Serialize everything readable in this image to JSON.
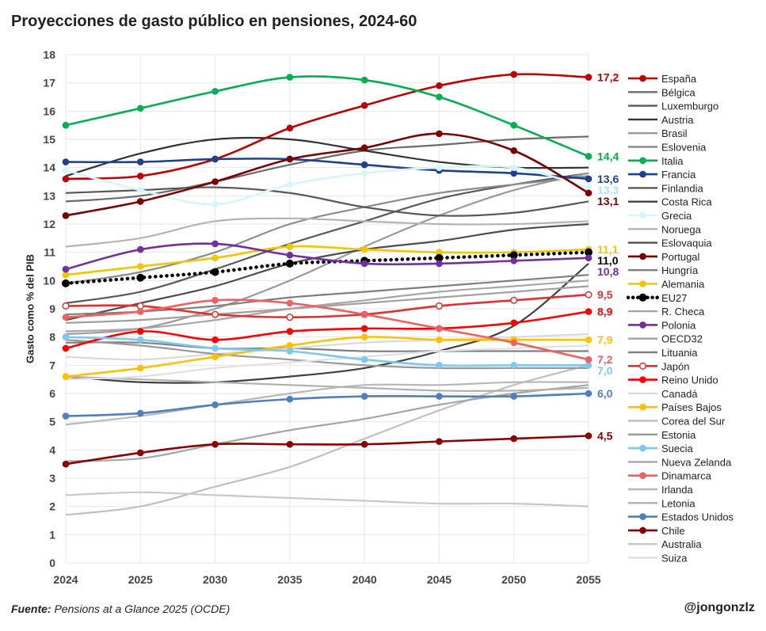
{
  "title": "Proyecciones de gasto público en pensiones, 2024-60",
  "source_label": "Fuente:",
  "source_text": "Pensions at a Glance 2025 (OCDE)",
  "handle": "@jongonzlz",
  "chart_data": {
    "type": "line",
    "title": "Proyecciones de gasto público en pensiones, 2024-60",
    "xlabel": "",
    "ylabel": "Gasto como % del PIB",
    "x": [
      "2024",
      "2025",
      "2030",
      "2035",
      "2040",
      "2045",
      "2050",
      "2055"
    ],
    "ylim": [
      0,
      18
    ],
    "yticks": [
      0,
      1,
      2,
      3,
      4,
      5,
      6,
      7,
      8,
      9,
      10,
      11,
      12,
      13,
      14,
      15,
      16,
      17,
      18
    ],
    "grid": true,
    "legend_position": "right",
    "series": [
      {
        "name": "España",
        "color": "#c00000",
        "markers": true,
        "end_label": "17,2",
        "values": [
          13.6,
          13.7,
          14.3,
          15.4,
          16.2,
          16.9,
          17.3,
          17.2
        ]
      },
      {
        "name": "Bélgica",
        "color": "#6b6b6b",
        "values": [
          12.8,
          13.0,
          13.5,
          14.1,
          14.6,
          14.8,
          15.0,
          15.1
        ]
      },
      {
        "name": "Luxemburgo",
        "color": "#595959",
        "values": [
          9.2,
          9.6,
          10.4,
          11.3,
          12.1,
          12.9,
          13.4,
          13.8
        ]
      },
      {
        "name": "Austria",
        "color": "#333333",
        "values": [
          13.7,
          14.5,
          15.0,
          15.0,
          14.6,
          14.2,
          14.0,
          14.0
        ]
      },
      {
        "name": "Brasil",
        "color": "#9a9a9a",
        "values": [
          8.1,
          8.3,
          9.0,
          10.0,
          11.2,
          12.3,
          13.2,
          13.8
        ]
      },
      {
        "name": "Eslovenia",
        "color": "#8c8c8c",
        "values": [
          9.9,
          10.3,
          11.0,
          12.0,
          12.6,
          13.1,
          13.4,
          13.7
        ]
      },
      {
        "name": "Italia",
        "color": "#00b050",
        "markers": true,
        "end_label": "14,4",
        "values": [
          15.5,
          16.1,
          16.7,
          17.2,
          17.1,
          16.5,
          15.5,
          14.4
        ]
      },
      {
        "name": "Francia",
        "color": "#1f3f8f",
        "markers": true,
        "end_label": "13,6",
        "values": [
          14.2,
          14.2,
          14.3,
          14.3,
          14.1,
          13.9,
          13.8,
          13.6
        ]
      },
      {
        "name": "Finlandia",
        "color": "#595959",
        "values": [
          13.1,
          13.2,
          13.3,
          13.1,
          12.6,
          12.3,
          12.4,
          12.8
        ]
      },
      {
        "name": "Costa Rica",
        "color": "#404040",
        "values": [
          6.6,
          6.4,
          6.4,
          6.6,
          6.9,
          7.5,
          8.4,
          10.6
        ]
      },
      {
        "name": "Grecia",
        "color": "#d6f6fb",
        "markers": true,
        "end_label": "13,3",
        "values": [
          13.9,
          13.2,
          12.7,
          13.4,
          13.8,
          14.0,
          14.0,
          13.3
        ]
      },
      {
        "name": "Noruega",
        "color": "#b3b3b3",
        "values": [
          11.2,
          11.5,
          12.1,
          12.2,
          12.1,
          12.0,
          12.0,
          12.1
        ]
      },
      {
        "name": "Eslovaquia",
        "color": "#4d4d4d",
        "values": [
          8.6,
          9.2,
          9.8,
          10.6,
          11.1,
          11.4,
          11.8,
          12.0
        ]
      },
      {
        "name": "Portugal",
        "color": "#7a0000",
        "markers": true,
        "end_label": "13,1",
        "values": [
          12.3,
          12.8,
          13.5,
          14.3,
          14.7,
          15.2,
          14.6,
          13.1
        ]
      },
      {
        "name": "Hungría",
        "color": "#7f7f7f",
        "values": [
          8.8,
          8.9,
          9.1,
          9.4,
          9.6,
          9.8,
          10.0,
          10.2
        ]
      },
      {
        "name": "Alemania",
        "color": "#f2c500",
        "markers": true,
        "end_label": "11,1",
        "values": [
          10.2,
          10.5,
          10.8,
          11.2,
          11.1,
          11.0,
          11.0,
          11.1
        ]
      },
      {
        "name": "EU27",
        "color": "#000000",
        "markers": true,
        "dotted": true,
        "end_label": "11,0",
        "values": [
          9.9,
          10.1,
          10.3,
          10.6,
          10.7,
          10.8,
          10.9,
          11.0
        ]
      },
      {
        "name": "R. Checa",
        "color": "#a6a6a6",
        "values": [
          8.2,
          8.3,
          8.6,
          9.0,
          9.3,
          9.6,
          9.8,
          10.0
        ]
      },
      {
        "name": "Polonia",
        "color": "#7030a0",
        "markers": true,
        "end_label": "10,8",
        "values": [
          10.4,
          11.1,
          11.3,
          10.9,
          10.6,
          10.6,
          10.7,
          10.8
        ]
      },
      {
        "name": "OECD32",
        "color": "#a0a0a0",
        "values": [
          8.5,
          8.6,
          8.8,
          9.0,
          9.2,
          9.4,
          9.6,
          9.8
        ]
      },
      {
        "name": "Lituania",
        "color": "#808080",
        "values": [
          7.8,
          7.8,
          7.6,
          7.6,
          7.5,
          7.5,
          7.5,
          7.5
        ]
      },
      {
        "name": "Japón",
        "color": "#e03030",
        "markers": true,
        "hollow": true,
        "end_label": "9,5",
        "values": [
          9.1,
          9.1,
          8.8,
          8.7,
          8.8,
          9.1,
          9.3,
          9.5
        ]
      },
      {
        "name": "Reino Unido",
        "color": "#ff0000",
        "markers": true,
        "end_label": "8,9",
        "values": [
          7.6,
          8.2,
          7.9,
          8.2,
          8.3,
          8.3,
          8.5,
          8.9
        ]
      },
      {
        "name": "Canadá",
        "color": "#d9d9d9",
        "values": [
          7.3,
          7.2,
          7.4,
          7.6,
          7.8,
          7.9,
          8.0,
          8.1
        ]
      },
      {
        "name": "Países Bajos",
        "color": "#ffc000",
        "markers": true,
        "end_label": "7,9",
        "values": [
          6.6,
          6.9,
          7.3,
          7.7,
          8.0,
          7.9,
          7.9,
          7.9
        ]
      },
      {
        "name": "Corea del Sur",
        "color": "#bfbfbf",
        "values": [
          1.7,
          2.0,
          2.7,
          3.4,
          4.4,
          5.4,
          6.3,
          7.0
        ]
      },
      {
        "name": "Estonia",
        "color": "#999999",
        "values": [
          7.9,
          7.7,
          7.4,
          7.2,
          7.0,
          6.9,
          6.9,
          6.9
        ]
      },
      {
        "name": "Suecia",
        "color": "#7cc8f0",
        "markers": true,
        "end_label": "7,0",
        "values": [
          8.0,
          7.9,
          7.6,
          7.5,
          7.2,
          7.0,
          7.0,
          7.0
        ]
      },
      {
        "name": "Nueva Zelanda",
        "color": "#a6a6a6",
        "values": [
          3.6,
          3.7,
          4.2,
          4.7,
          5.1,
          5.6,
          6.0,
          6.3
        ]
      },
      {
        "name": "Dinamarca",
        "color": "#f06060",
        "markers": true,
        "end_label": "7,2",
        "values": [
          8.7,
          8.9,
          9.3,
          9.2,
          8.8,
          8.3,
          7.8,
          7.2
        ]
      },
      {
        "name": "Irlanda",
        "color": "#b8b8b8",
        "values": [
          4.9,
          5.2,
          5.6,
          6.0,
          6.3,
          6.3,
          6.4,
          6.4
        ]
      },
      {
        "name": "Letonia",
        "color": "#b0b0b0",
        "values": [
          6.6,
          6.5,
          6.4,
          6.3,
          6.2,
          6.1,
          6.1,
          6.2
        ]
      },
      {
        "name": "Estados Unidos",
        "color": "#4f7fbf",
        "markers": true,
        "end_label": "6,0",
        "values": [
          5.2,
          5.3,
          5.6,
          5.8,
          5.9,
          5.9,
          5.9,
          6.0
        ]
      },
      {
        "name": "Chile",
        "color": "#8b0000",
        "markers": true,
        "end_label": "4,5",
        "values": [
          3.5,
          3.9,
          4.2,
          4.2,
          4.2,
          4.3,
          4.4,
          4.5
        ]
      },
      {
        "name": "Australia",
        "color": "#c8c8c8",
        "values": [
          2.4,
          2.5,
          2.4,
          2.3,
          2.2,
          2.1,
          2.1,
          2.0
        ]
      },
      {
        "name": "Suiza",
        "color": "#e0e0e0",
        "values": [
          6.5,
          6.6,
          6.9,
          7.1,
          7.3,
          7.5,
          7.6,
          7.7
        ]
      }
    ]
  }
}
